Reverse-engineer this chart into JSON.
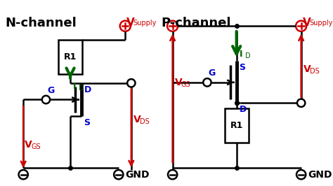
{
  "title_left": "N-channel",
  "title_right": "P-channel",
  "bg_color": "#ffffff",
  "black": "#000000",
  "red": "#cc0000",
  "green": "#006400",
  "blue": "#0000cc",
  "label_G": "G",
  "label_D": "D",
  "label_S": "S",
  "label_R1": "R1",
  "label_ID": "I",
  "label_ID_sub": "D",
  "label_VGS": "V",
  "label_VGS_sub": "GS",
  "label_VDS": "V",
  "label_VDS_sub": "DS",
  "label_VSupply": "V",
  "label_VSupply_sub": "Supply",
  "label_GND": "GND"
}
